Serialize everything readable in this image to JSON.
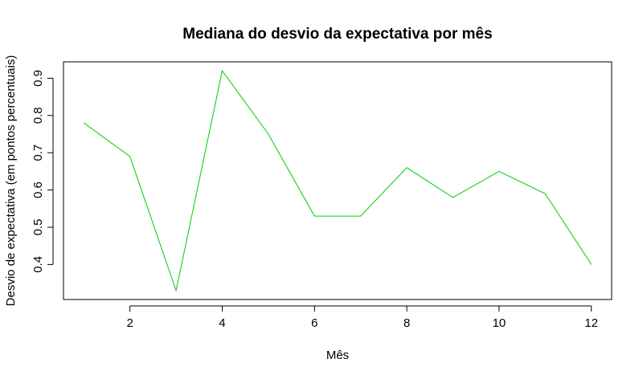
{
  "chart_data": {
    "type": "line",
    "title": "Mediana do desvio da expectativa por mês",
    "xlabel": "Mês",
    "ylabel": "Desvio de expectativa (em pontos percentuais)",
    "x": [
      1,
      2,
      3,
      4,
      5,
      6,
      7,
      8,
      9,
      10,
      11,
      12
    ],
    "series": [
      {
        "values": [
          0.78,
          0.69,
          0.33,
          0.92,
          0.75,
          0.53,
          0.53,
          0.66,
          0.58,
          0.65,
          0.59,
          0.4
        ],
        "color": "#00cc00"
      }
    ],
    "xticks": [
      2,
      4,
      6,
      8,
      10,
      12
    ],
    "yticks": [
      0.4,
      0.5,
      0.6,
      0.7,
      0.8,
      0.9
    ],
    "xlim": [
      0.56,
      12.44
    ],
    "ylim": [
      0.306,
      0.944
    ],
    "grid": false,
    "legend": "none"
  }
}
